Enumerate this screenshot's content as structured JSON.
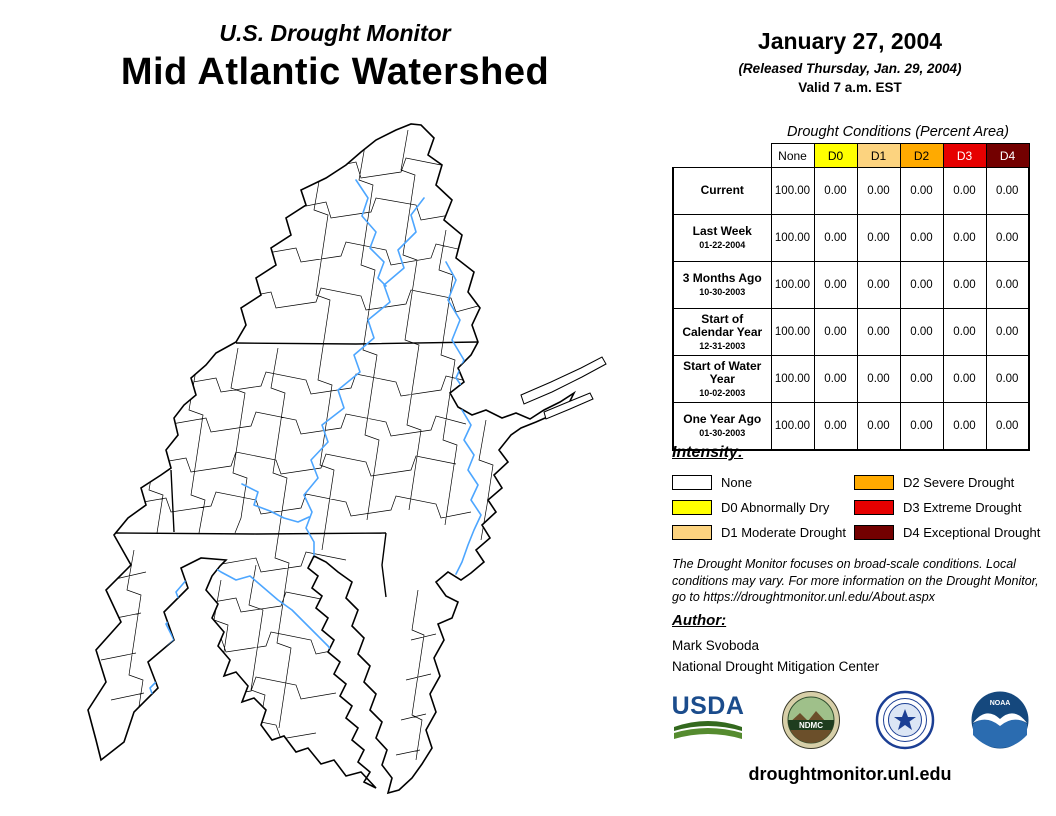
{
  "header": {
    "title_line1": "U.S. Drought Monitor",
    "title_line2": "Mid Atlantic Watershed",
    "date": "January 27, 2004",
    "released": "(Released Thursday, Jan. 29, 2004)",
    "valid": "Valid 7 a.m. EST"
  },
  "table": {
    "caption": "Drought Conditions (Percent Area)",
    "columns": [
      "None",
      "D0",
      "D1",
      "D2",
      "D3",
      "D4"
    ],
    "column_colors": [
      "#FFFFFF",
      "#FFFF00",
      "#FCD37F",
      "#FFAA00",
      "#E60000",
      "#730000"
    ],
    "column_text_colors": [
      "#000000",
      "#000000",
      "#000000",
      "#000000",
      "#FFFFFF",
      "#FFFFFF"
    ],
    "rows": [
      {
        "label": "Current",
        "date": "",
        "values": [
          "100.00",
          "0.00",
          "0.00",
          "0.00",
          "0.00",
          "0.00"
        ]
      },
      {
        "label": "Last Week",
        "date": "01-22-2004",
        "values": [
          "100.00",
          "0.00",
          "0.00",
          "0.00",
          "0.00",
          "0.00"
        ]
      },
      {
        "label": "3 Months Ago",
        "date": "10-30-2003",
        "values": [
          "100.00",
          "0.00",
          "0.00",
          "0.00",
          "0.00",
          "0.00"
        ]
      },
      {
        "label": "Start of Calendar Year",
        "date": "12-31-2003",
        "values": [
          "100.00",
          "0.00",
          "0.00",
          "0.00",
          "0.00",
          "0.00"
        ]
      },
      {
        "label": "Start of Water Year",
        "date": "10-02-2003",
        "values": [
          "100.00",
          "0.00",
          "0.00",
          "0.00",
          "0.00",
          "0.00"
        ]
      },
      {
        "label": "One Year Ago",
        "date": "01-30-2003",
        "values": [
          "100.00",
          "0.00",
          "0.00",
          "0.00",
          "0.00",
          "0.00"
        ]
      }
    ]
  },
  "legend": {
    "title": "Intensity:",
    "items": [
      {
        "label": "None",
        "color": "#FFFFFF"
      },
      {
        "label": "D0 Abnormally Dry",
        "color": "#FFFF00"
      },
      {
        "label": "D1 Moderate Drought",
        "color": "#FCD37F"
      },
      {
        "label": "D2 Severe Drought",
        "color": "#FFAA00"
      },
      {
        "label": "D3 Extreme Drought",
        "color": "#E60000"
      },
      {
        "label": "D4 Exceptional Drought",
        "color": "#730000"
      }
    ]
  },
  "disclaimer": {
    "text": "The Drought Monitor focuses on broad-scale conditions. Local conditions may vary. For more information on the Drought Monitor, go to https://droughtmonitor.unl.edu/About.aspx"
  },
  "author": {
    "title": "Author:",
    "name": "Mark Svoboda",
    "org": "National Drought Mitigation Center"
  },
  "logos": {
    "usda": "USDA",
    "ndmc": "NDMC",
    "noaa": "NOAA"
  },
  "footer": {
    "url": "droughtmonitor.unl.edu"
  },
  "map": {
    "fill": "#FFFFFF",
    "boundary_color": "#000000",
    "river_color": "#4DA6FF"
  },
  "chart_data": {
    "type": "table",
    "title": "Drought Conditions (Percent Area)",
    "columns": [
      "None",
      "D0",
      "D1",
      "D2",
      "D3",
      "D4"
    ],
    "rows": [
      {
        "label": "Current",
        "date": "",
        "values": [
          100.0,
          0.0,
          0.0,
          0.0,
          0.0,
          0.0
        ]
      },
      {
        "label": "Last Week",
        "date": "01-22-2004",
        "values": [
          100.0,
          0.0,
          0.0,
          0.0,
          0.0,
          0.0
        ]
      },
      {
        "label": "3 Months Ago",
        "date": "10-30-2003",
        "values": [
          100.0,
          0.0,
          0.0,
          0.0,
          0.0,
          0.0
        ]
      },
      {
        "label": "Start of Calendar Year",
        "date": "12-31-2003",
        "values": [
          100.0,
          0.0,
          0.0,
          0.0,
          0.0,
          0.0
        ]
      },
      {
        "label": "Start of Water Year",
        "date": "10-02-2003",
        "values": [
          100.0,
          0.0,
          0.0,
          0.0,
          0.0,
          0.0
        ]
      },
      {
        "label": "One Year Ago",
        "date": "01-30-2003",
        "values": [
          100.0,
          0.0,
          0.0,
          0.0,
          0.0,
          0.0
        ]
      }
    ]
  }
}
